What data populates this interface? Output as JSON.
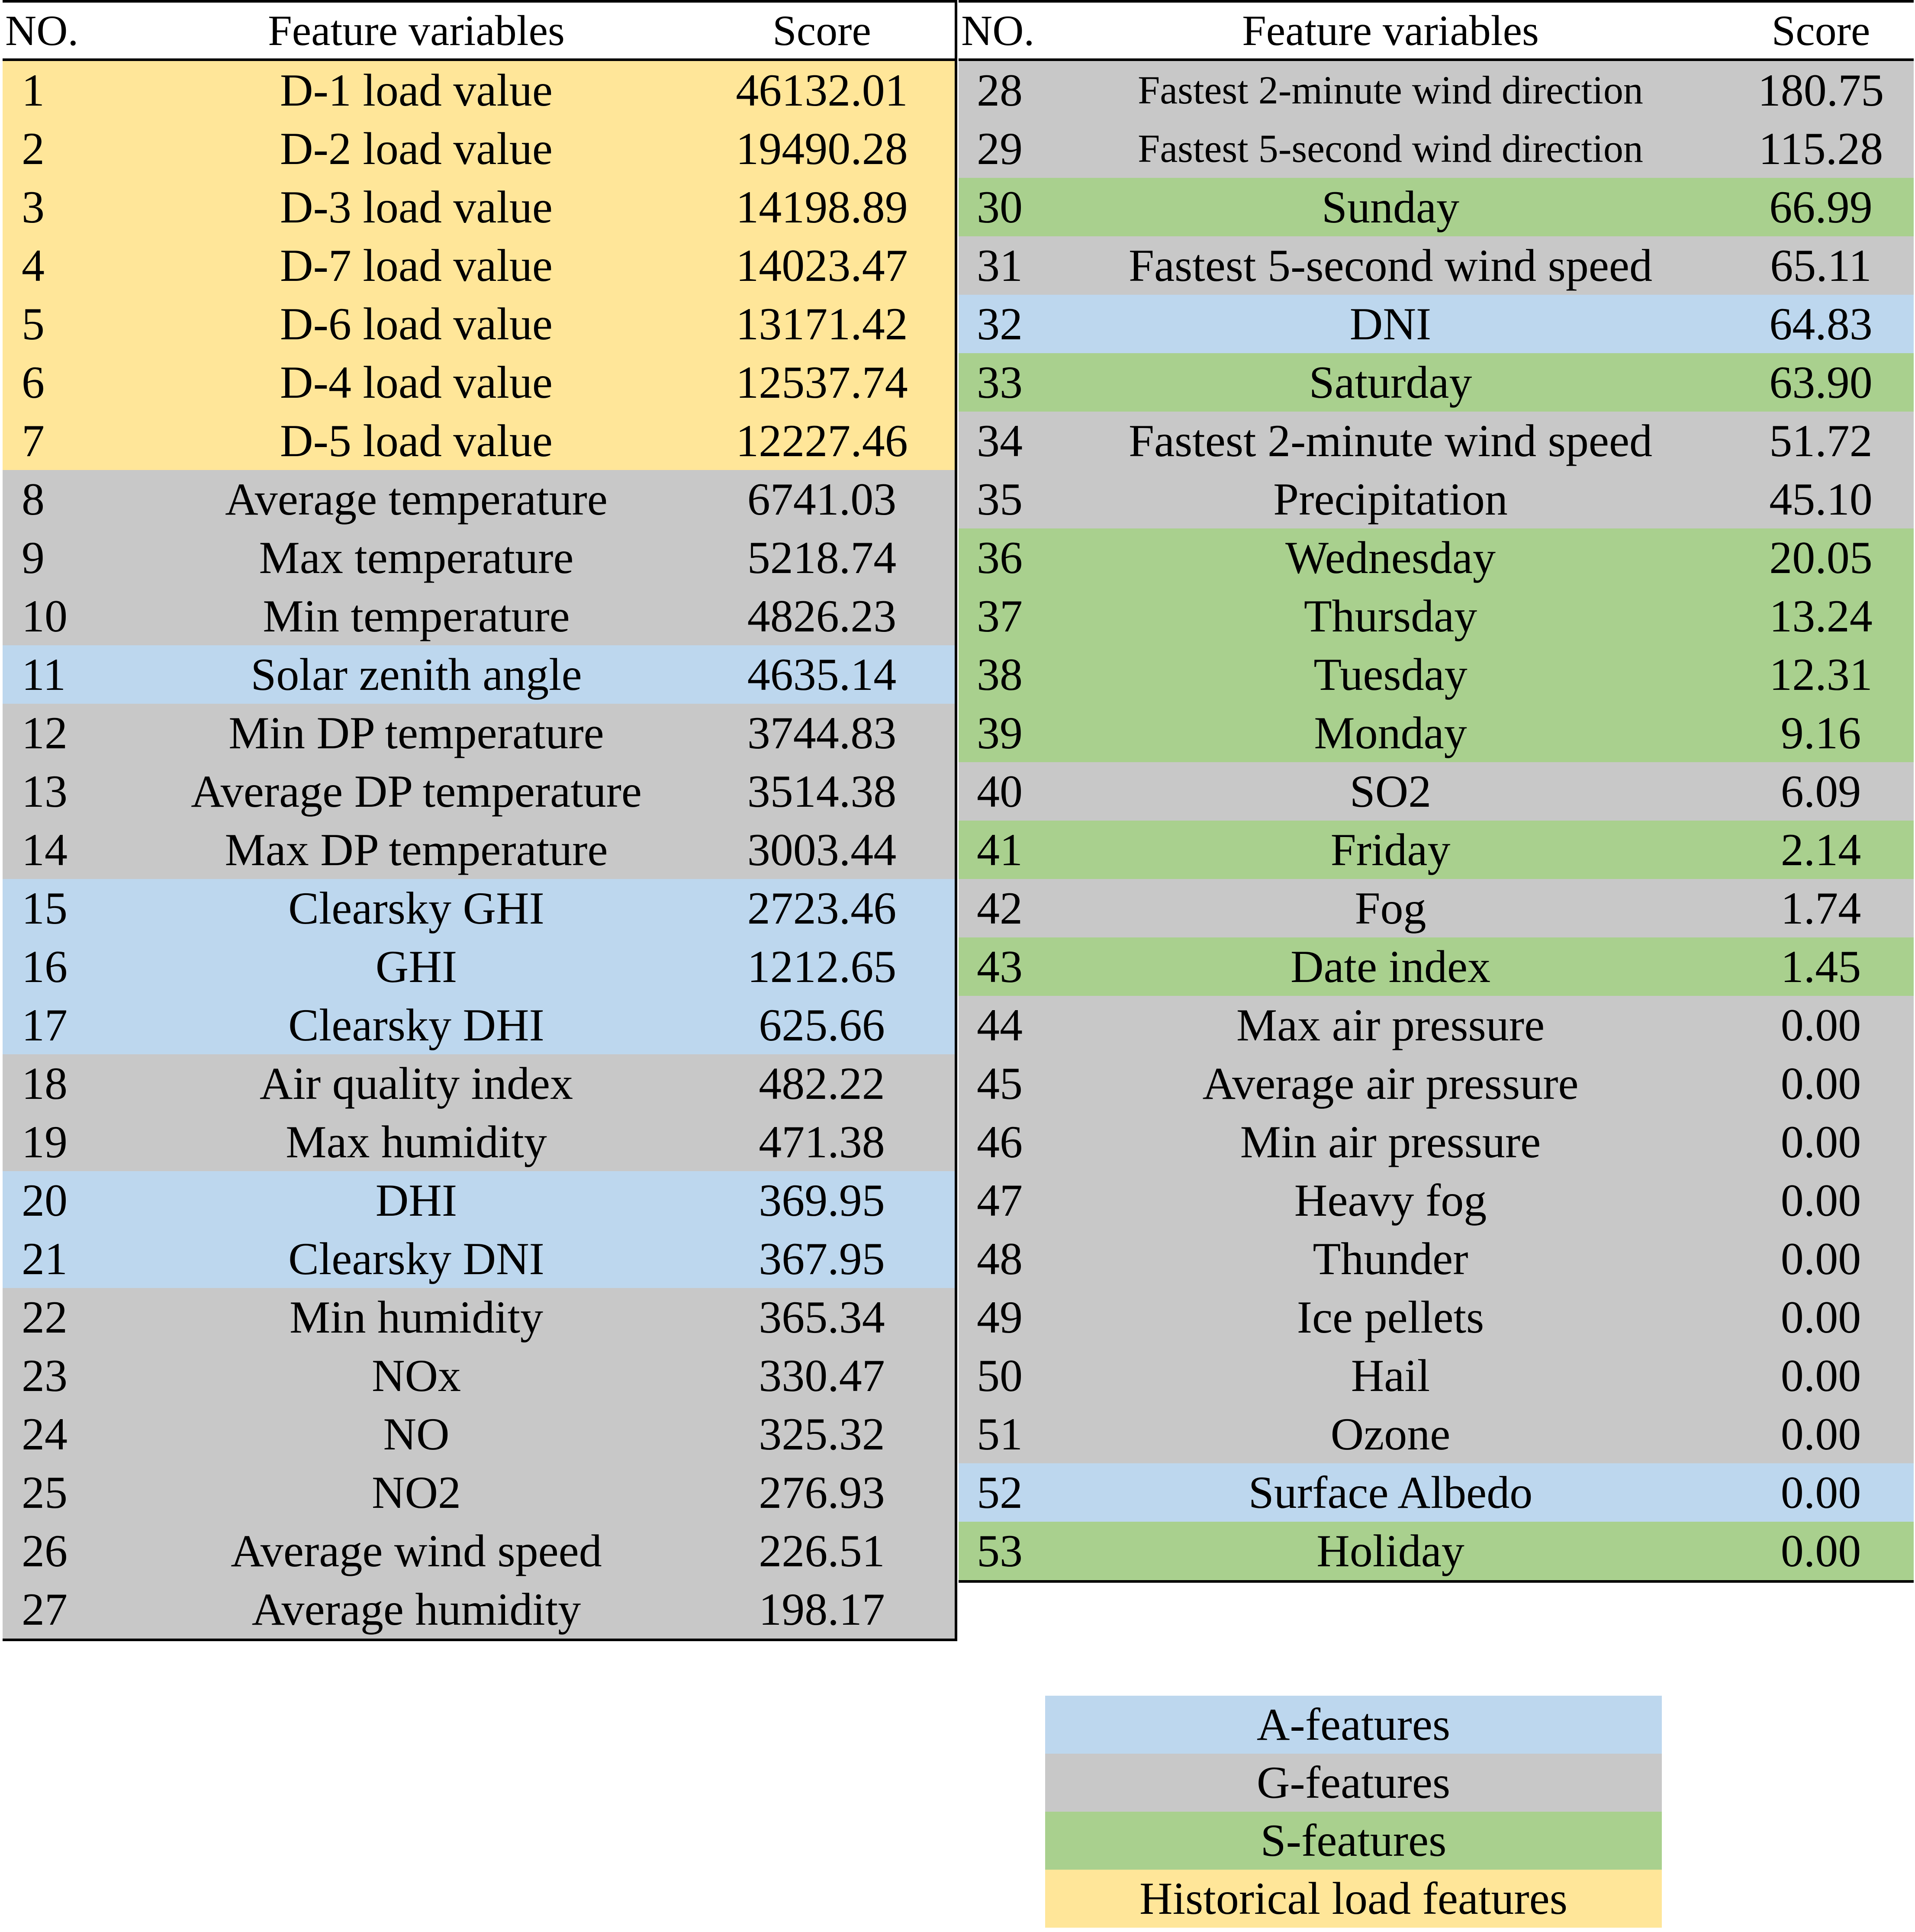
{
  "headers": {
    "no": "NO.",
    "feature": "Feature variables",
    "score": "Score"
  },
  "colors": {
    "A": "#bdd7ee",
    "G": "#c8c8c8",
    "S": "#a9d08e",
    "H": "#ffe699"
  },
  "left_rows": [
    {
      "no": "1",
      "feature": "D-1 load value",
      "score": "46132.01",
      "cat": "H"
    },
    {
      "no": "2",
      "feature": "D-2 load value",
      "score": "19490.28",
      "cat": "H"
    },
    {
      "no": "3",
      "feature": "D-3 load value",
      "score": "14198.89",
      "cat": "H"
    },
    {
      "no": "4",
      "feature": "D-7 load value",
      "score": "14023.47",
      "cat": "H"
    },
    {
      "no": "5",
      "feature": "D-6 load value",
      "score": "13171.42",
      "cat": "H"
    },
    {
      "no": "6",
      "feature": "D-4 load value",
      "score": "12537.74",
      "cat": "H"
    },
    {
      "no": "7",
      "feature": "D-5 load value",
      "score": "12227.46",
      "cat": "H"
    },
    {
      "no": "8",
      "feature": "Average temperature",
      "score": "6741.03",
      "cat": "G"
    },
    {
      "no": "9",
      "feature": "Max temperature",
      "score": "5218.74",
      "cat": "G"
    },
    {
      "no": "10",
      "feature": "Min temperature",
      "score": "4826.23",
      "cat": "G"
    },
    {
      "no": "11",
      "feature": "Solar zenith angle",
      "score": "4635.14",
      "cat": "A"
    },
    {
      "no": "12",
      "feature": "Min DP temperature",
      "score": "3744.83",
      "cat": "G"
    },
    {
      "no": "13",
      "feature": "Average DP temperature",
      "score": "3514.38",
      "cat": "G"
    },
    {
      "no": "14",
      "feature": "Max DP temperature",
      "score": "3003.44",
      "cat": "G"
    },
    {
      "no": "15",
      "feature": "Clearsky GHI",
      "score": "2723.46",
      "cat": "A"
    },
    {
      "no": "16",
      "feature": "GHI",
      "score": "1212.65",
      "cat": "A"
    },
    {
      "no": "17",
      "feature": "Clearsky DHI",
      "score": "625.66",
      "cat": "A"
    },
    {
      "no": "18",
      "feature": "Air quality index",
      "score": "482.22",
      "cat": "G"
    },
    {
      "no": "19",
      "feature": "Max humidity",
      "score": "471.38",
      "cat": "G"
    },
    {
      "no": "20",
      "feature": "DHI",
      "score": "369.95",
      "cat": "A"
    },
    {
      "no": "21",
      "feature": "Clearsky DNI",
      "score": "367.95",
      "cat": "A"
    },
    {
      "no": "22",
      "feature": "Min humidity",
      "score": "365.34",
      "cat": "G"
    },
    {
      "no": "23",
      "feature": "NOx",
      "score": "330.47",
      "cat": "G"
    },
    {
      "no": "24",
      "feature": "NO",
      "score": "325.32",
      "cat": "G"
    },
    {
      "no": "25",
      "feature": "NO2",
      "score": "276.93",
      "cat": "G"
    },
    {
      "no": "26",
      "feature": "Average wind speed",
      "score": "226.51",
      "cat": "G"
    },
    {
      "no": "27",
      "feature": "Average humidity",
      "score": "198.17",
      "cat": "G"
    }
  ],
  "right_rows": [
    {
      "no": "28",
      "feature": "Fastest 2-minute wind direction",
      "score": "180.75",
      "cat": "G",
      "small": true
    },
    {
      "no": "29",
      "feature": "Fastest 5-second wind direction",
      "score": "115.28",
      "cat": "G",
      "small": true
    },
    {
      "no": "30",
      "feature": "Sunday",
      "score": "66.99",
      "cat": "S"
    },
    {
      "no": "31",
      "feature": "Fastest 5-second wind speed",
      "score": "65.11",
      "cat": "G"
    },
    {
      "no": "32",
      "feature": "DNI",
      "score": "64.83",
      "cat": "A"
    },
    {
      "no": "33",
      "feature": "Saturday",
      "score": "63.90",
      "cat": "S"
    },
    {
      "no": "34",
      "feature": "Fastest 2-minute wind speed",
      "score": "51.72",
      "cat": "G"
    },
    {
      "no": "35",
      "feature": "Precipitation",
      "score": "45.10",
      "cat": "G"
    },
    {
      "no": "36",
      "feature": "Wednesday",
      "score": "20.05",
      "cat": "S"
    },
    {
      "no": "37",
      "feature": "Thursday",
      "score": "13.24",
      "cat": "S"
    },
    {
      "no": "38",
      "feature": "Tuesday",
      "score": "12.31",
      "cat": "S"
    },
    {
      "no": "39",
      "feature": "Monday",
      "score": "9.16",
      "cat": "S"
    },
    {
      "no": "40",
      "feature": "SO2",
      "score": "6.09",
      "cat": "G"
    },
    {
      "no": "41",
      "feature": "Friday",
      "score": "2.14",
      "cat": "S"
    },
    {
      "no": "42",
      "feature": "Fog",
      "score": "1.74",
      "cat": "G"
    },
    {
      "no": "43",
      "feature": "Date index",
      "score": "1.45",
      "cat": "S"
    },
    {
      "no": "44",
      "feature": "Max air pressure",
      "score": "0.00",
      "cat": "G"
    },
    {
      "no": "45",
      "feature": "Average air pressure",
      "score": "0.00",
      "cat": "G"
    },
    {
      "no": "46",
      "feature": "Min air pressure",
      "score": "0.00",
      "cat": "G"
    },
    {
      "no": "47",
      "feature": "Heavy fog",
      "score": "0.00",
      "cat": "G"
    },
    {
      "no": "48",
      "feature": "Thunder",
      "score": "0.00",
      "cat": "G"
    },
    {
      "no": "49",
      "feature": "Ice pellets",
      "score": "0.00",
      "cat": "G"
    },
    {
      "no": "50",
      "feature": "Hail",
      "score": "0.00",
      "cat": "G"
    },
    {
      "no": "51",
      "feature": "Ozone",
      "score": "0.00",
      "cat": "G"
    },
    {
      "no": "52",
      "feature": "Surface Albedo",
      "score": "0.00",
      "cat": "A"
    },
    {
      "no": "53",
      "feature": "Holiday",
      "score": "0.00",
      "cat": "S"
    }
  ],
  "legend": [
    {
      "label": "A-features",
      "cat": "A"
    },
    {
      "label": "G-features",
      "cat": "G"
    },
    {
      "label": "S-features",
      "cat": "S"
    },
    {
      "label": "Historical load features",
      "cat": "H"
    }
  ]
}
